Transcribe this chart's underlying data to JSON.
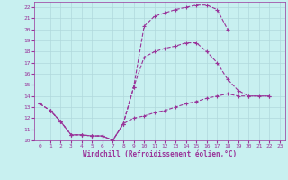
{
  "xlabel": "Windchill (Refroidissement éolien,°C)",
  "background_color": "#c8f0f0",
  "grid_color": "#b0d8dc",
  "line_color": "#993399",
  "xlim": [
    -0.5,
    23.5
  ],
  "ylim": [
    10,
    22.5
  ],
  "xticks": [
    0,
    1,
    2,
    3,
    4,
    5,
    6,
    7,
    8,
    9,
    10,
    11,
    12,
    13,
    14,
    15,
    16,
    17,
    18,
    19,
    20,
    21,
    22,
    23
  ],
  "yticks": [
    10,
    11,
    12,
    13,
    14,
    15,
    16,
    17,
    18,
    19,
    20,
    21,
    22
  ],
  "line1_x": [
    0,
    1,
    2,
    3,
    4,
    5,
    6,
    7,
    8,
    9,
    10,
    11,
    12,
    13,
    14,
    15,
    16,
    17,
    18
  ],
  "line1_y": [
    13.3,
    12.7,
    11.7,
    10.5,
    10.5,
    10.4,
    10.4,
    10.0,
    11.5,
    14.8,
    20.3,
    21.2,
    21.5,
    21.8,
    22.0,
    22.2,
    22.2,
    21.8,
    20.0
  ],
  "line2_x": [
    0,
    1,
    2,
    3,
    4,
    5,
    6,
    7,
    8,
    9,
    10,
    11,
    12,
    13,
    14,
    15,
    16,
    17,
    18,
    19,
    20,
    22
  ],
  "line2_y": [
    13.3,
    12.7,
    11.7,
    10.5,
    10.5,
    10.4,
    10.4,
    10.0,
    11.5,
    14.8,
    17.5,
    18.0,
    18.3,
    18.5,
    18.8,
    18.8,
    18.0,
    17.0,
    15.5,
    14.5,
    14.0,
    14.0
  ],
  "line3_x": [
    1,
    2,
    3,
    4,
    5,
    6,
    7,
    8,
    9,
    10,
    11,
    12,
    13,
    14,
    15,
    16,
    17,
    18,
    19,
    20,
    21,
    22
  ],
  "line3_y": [
    12.7,
    11.7,
    10.5,
    10.5,
    10.4,
    10.4,
    10.0,
    11.5,
    12.0,
    12.2,
    12.5,
    12.7,
    13.0,
    13.3,
    13.5,
    13.8,
    14.0,
    14.2,
    14.0,
    14.0,
    14.0,
    14.0
  ]
}
